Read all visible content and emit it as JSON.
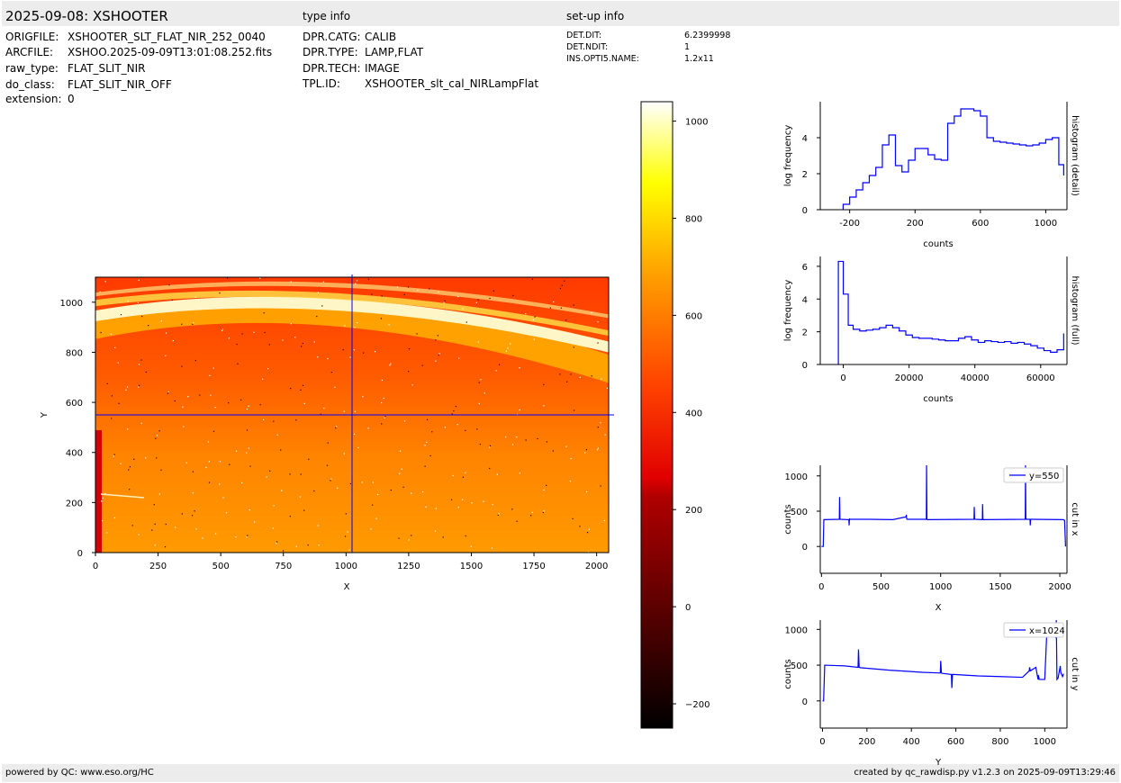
{
  "header": {
    "title": "2025-09-08: XSHOOTER",
    "type_info_title": "type info",
    "setup_info_title": "set-up info"
  },
  "file_info": [
    {
      "key": "ORIGFILE:",
      "value": "XSHOOTER_SLT_FLAT_NIR_252_0040"
    },
    {
      "key": "ARCFILE:",
      "value": "XSHOO.2025-09-09T13:01:08.252.fits"
    },
    {
      "key": "raw_type:",
      "value": "FLAT_SLIT_NIR"
    },
    {
      "key": "do_class:",
      "value": "FLAT_SLIT_NIR_OFF"
    },
    {
      "key": "extension:",
      "value": "0"
    }
  ],
  "type_info": [
    {
      "key": "DPR.CATG:",
      "value": "CALIB"
    },
    {
      "key": "DPR.TYPE:",
      "value": "LAMP,FLAT"
    },
    {
      "key": "DPR.TECH:",
      "value": "IMAGE"
    },
    {
      "key": "TPL.ID:",
      "value": "XSHOOTER_slt_cal_NIRLampFlat"
    }
  ],
  "setup_info": [
    {
      "key": "DET.DIT:",
      "value": "6.2399998"
    },
    {
      "key": "DET.NDIT:",
      "value": "1"
    },
    {
      "key": "INS.OPTI5.NAME:",
      "value": "1.2x11"
    }
  ],
  "footer": {
    "left": "powered by QC: www.eso.org/HC",
    "right": "created by qc_rawdisp.py v1.2.3 on 2025-09-09T13:29:46"
  },
  "colors": {
    "line": "#0000ff",
    "bar": "#ececec"
  },
  "chart_data": [
    {
      "type": "heatmap",
      "xlabel": "X",
      "ylabel": "Y",
      "xlim": [
        0,
        2048
      ],
      "ylim": [
        0,
        1100
      ],
      "xticks": [
        "0",
        "250",
        "500",
        "750",
        "1000",
        "1250",
        "1500",
        "1750",
        "2000"
      ],
      "yticks": [
        "0",
        "200",
        "400",
        "600",
        "800",
        "1000"
      ],
      "crosshair": {
        "x": 1024,
        "y": 550
      },
      "colormap": "hot",
      "colorbar": {
        "range": [
          -250,
          1040
        ],
        "ticks": [
          "−200",
          "0",
          "200",
          "400",
          "600",
          "800",
          "1000"
        ]
      }
    },
    {
      "type": "line",
      "xlabel": "counts",
      "ylabel": "log frequency",
      "side_label": "histogram (detail)",
      "xlim": [
        -380,
        1130
      ],
      "ylim": [
        0,
        6
      ],
      "xticks": [
        "-200",
        "200",
        "600",
        "1000"
      ],
      "yticks": [
        "0",
        "2",
        "4"
      ],
      "step": true,
      "x": [
        -240,
        -200,
        -160,
        -120,
        -80,
        -40,
        0,
        40,
        80,
        120,
        160,
        200,
        240,
        280,
        320,
        360,
        400,
        440,
        480,
        520,
        560,
        600,
        640,
        680,
        720,
        760,
        800,
        840,
        880,
        920,
        960,
        1000,
        1040,
        1080,
        1110
      ],
      "y": [
        0.3,
        0.7,
        1.1,
        1.5,
        1.9,
        2.35,
        3.6,
        4.15,
        2.45,
        2.1,
        2.75,
        3.4,
        3.4,
        3.05,
        2.8,
        2.75,
        4.8,
        5.2,
        5.6,
        5.6,
        5.5,
        5.2,
        4.0,
        3.8,
        3.75,
        3.7,
        3.65,
        3.6,
        3.55,
        3.6,
        3.7,
        3.9,
        4.0,
        2.5,
        1.9
      ]
    },
    {
      "type": "line",
      "xlabel": "counts",
      "ylabel": "log frequency",
      "side_label": "histogram (full)",
      "xlim": [
        -7000,
        68000
      ],
      "ylim": [
        0,
        6.6
      ],
      "xticks": [
        "0",
        "20000",
        "40000",
        "60000"
      ],
      "yticks": [
        "0",
        "2",
        "4",
        "6"
      ],
      "step": true,
      "x": [
        -1500,
        0,
        1500,
        3000,
        5000,
        7000,
        9000,
        11000,
        13000,
        15000,
        17000,
        19000,
        21000,
        23000,
        25000,
        27000,
        29000,
        31000,
        33000,
        35000,
        37000,
        39000,
        41000,
        43000,
        45000,
        47000,
        49000,
        51000,
        53000,
        55000,
        57000,
        59000,
        61000,
        63000,
        65000,
        67000
      ],
      "y": [
        6.3,
        4.3,
        2.4,
        2.15,
        2.05,
        2.1,
        2.15,
        2.25,
        2.4,
        2.25,
        2.05,
        1.8,
        1.65,
        1.6,
        1.6,
        1.55,
        1.5,
        1.45,
        1.45,
        1.6,
        1.7,
        1.5,
        1.35,
        1.45,
        1.4,
        1.35,
        1.4,
        1.3,
        1.35,
        1.25,
        1.15,
        1.0,
        0.85,
        0.75,
        0.9,
        1.9
      ]
    },
    {
      "type": "line",
      "xlabel": "X",
      "ylabel": "counts",
      "side_label": "cut in x",
      "legend": "y=550",
      "legend_position": "top-right",
      "xlim": [
        -10,
        2060
      ],
      "ylim": [
        -380,
        1150
      ],
      "xticks": [
        "0",
        "500",
        "1000",
        "1500",
        "2000"
      ],
      "yticks": [
        "0",
        "500",
        "1000"
      ],
      "x": [
        0,
        15,
        20,
        150,
        152,
        155,
        160,
        230,
        232,
        235,
        240,
        400,
        600,
        710,
        712,
        715,
        720,
        880,
        882,
        885,
        890,
        1280,
        1282,
        1285,
        1290,
        1350,
        1352,
        1355,
        1360,
        1710,
        1712,
        1715,
        1720,
        1750,
        1752,
        1755,
        1760,
        2030,
        2040,
        2048
      ],
      "y": [
        0,
        0,
        380,
        385,
        700,
        390,
        385,
        380,
        300,
        390,
        385,
        385,
        380,
        420,
        450,
        390,
        385,
        385,
        1150,
        385,
        380,
        385,
        560,
        390,
        385,
        380,
        600,
        385,
        380,
        385,
        1150,
        400,
        385,
        385,
        300,
        385,
        385,
        380,
        370,
        0
      ]
    },
    {
      "type": "line",
      "xlabel": "Y",
      "ylabel": "counts",
      "side_label": "cut in y",
      "legend": "x=1024",
      "legend_position": "top-right",
      "xlim": [
        -10,
        1100
      ],
      "ylim": [
        -380,
        1130
      ],
      "xticks": [
        "0",
        "200",
        "400",
        "600",
        "800",
        "1000"
      ],
      "yticks": [
        "0",
        "500",
        "1000"
      ],
      "x": [
        0,
        5,
        10,
        100,
        160,
        162,
        165,
        170,
        300,
        450,
        530,
        532,
        535,
        540,
        580,
        582,
        585,
        590,
        700,
        800,
        900,
        930,
        932,
        935,
        960,
        970,
        972,
        975,
        1000,
        1010,
        1020,
        1030,
        1040,
        1050,
        1052,
        1055,
        1060,
        1070,
        1072,
        1080,
        1085
      ],
      "y": [
        0,
        0,
        500,
        490,
        470,
        720,
        470,
        465,
        430,
        400,
        390,
        560,
        390,
        385,
        370,
        180,
        370,
        370,
        350,
        340,
        330,
        420,
        470,
        420,
        470,
        300,
        360,
        300,
        300,
        1000,
        930,
        1000,
        950,
        880,
        1130,
        300,
        320,
        490,
        400,
        340,
        380
      ]
    }
  ]
}
